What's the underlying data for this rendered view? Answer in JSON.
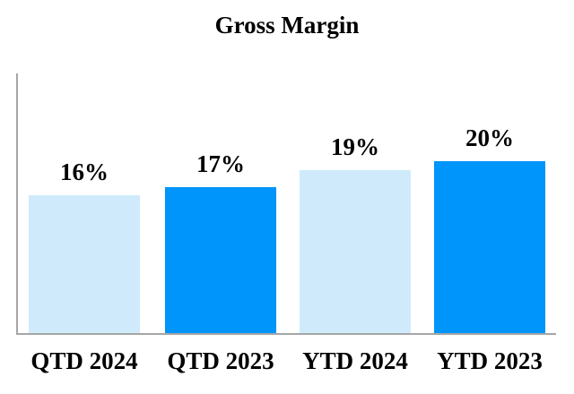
{
  "page": {
    "background_color": "#ffffff",
    "text_color": "#000000"
  },
  "chart_data": {
    "type": "bar",
    "title": "Gross Margin",
    "categories": [
      "QTD 2024",
      "QTD 2023",
      "YTD 2024",
      "YTD 2023"
    ],
    "values": [
      16,
      17,
      19,
      20
    ],
    "value_labels": [
      "16%",
      "17%",
      "19%",
      "20%"
    ],
    "bar_colors": [
      "#cfebfb",
      "#0095fa",
      "#cfebfb",
      "#0095fa"
    ],
    "color_light_blue": "#cfebfb",
    "color_dark_blue": "#0095fa",
    "axis_color": "#a6a6a6",
    "xlabel": "",
    "ylabel": "",
    "ylim": [
      0,
      30
    ],
    "grid": false,
    "legend": "none",
    "y_tick_labels_shown": false
  }
}
